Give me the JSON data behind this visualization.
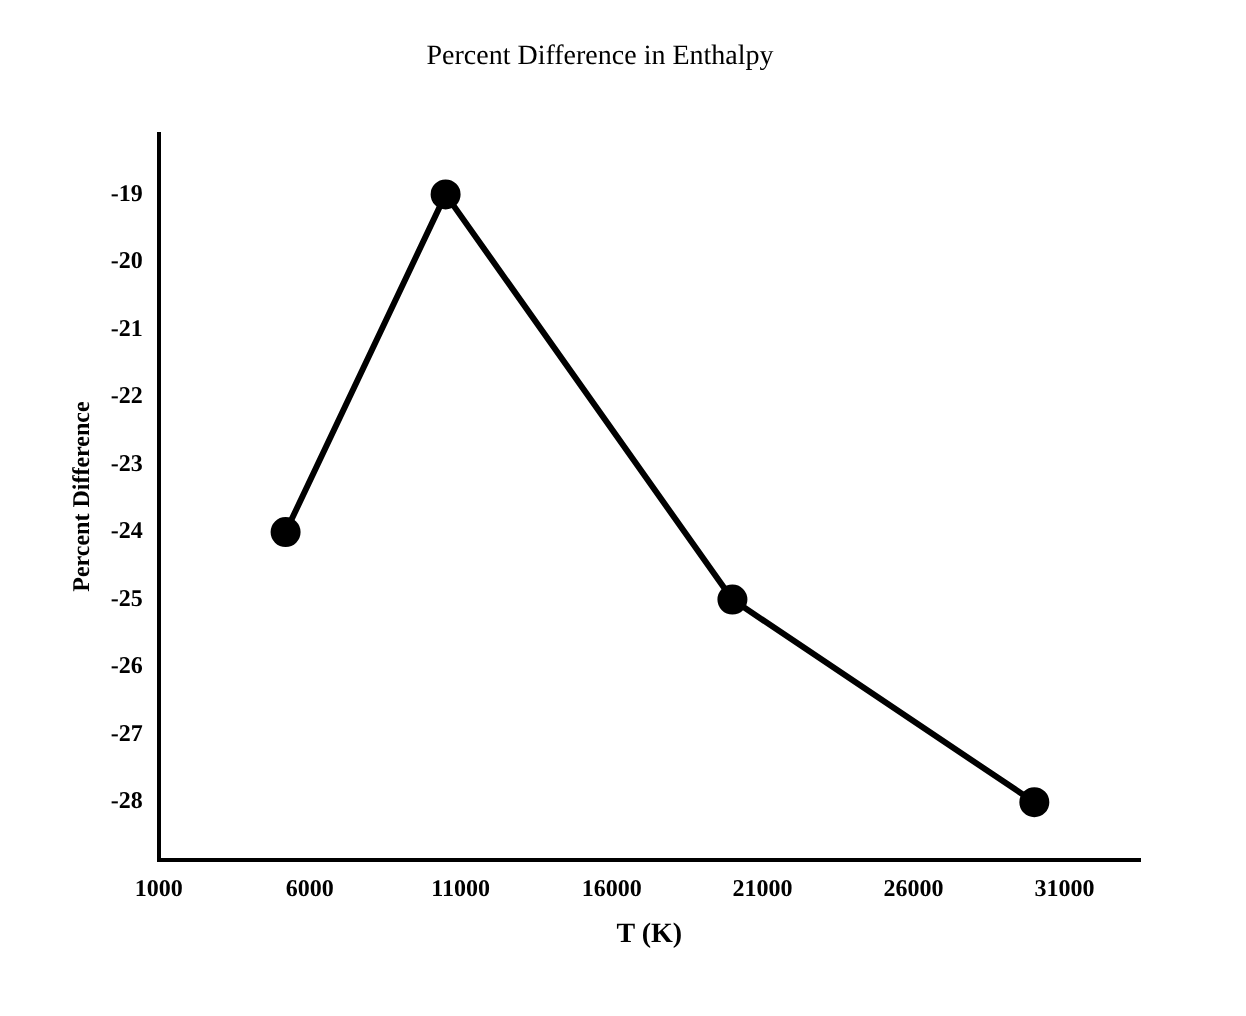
{
  "chart_data": {
    "type": "line",
    "title": "Percent Difference in Enthalpy",
    "xlabel": "T (K)",
    "ylabel": "Percent Difference",
    "x": [
      5200,
      10500,
      20000,
      30000
    ],
    "series": [
      {
        "color": "#000000",
        "values": [
          -24,
          -19,
          -25,
          -28
        ]
      }
    ],
    "xlim": [
      1000,
      33500
    ],
    "xticks": [
      1000,
      6000,
      11000,
      16000,
      21000,
      26000,
      31000
    ],
    "ylim": [
      -28.85,
      -18.1
    ],
    "yticks": [
      -28,
      -27,
      -26,
      -25,
      -24,
      -23,
      -22,
      -21,
      -20,
      -19
    ],
    "grid": false,
    "legend": false,
    "marker": "circle",
    "line_style": "solid"
  }
}
